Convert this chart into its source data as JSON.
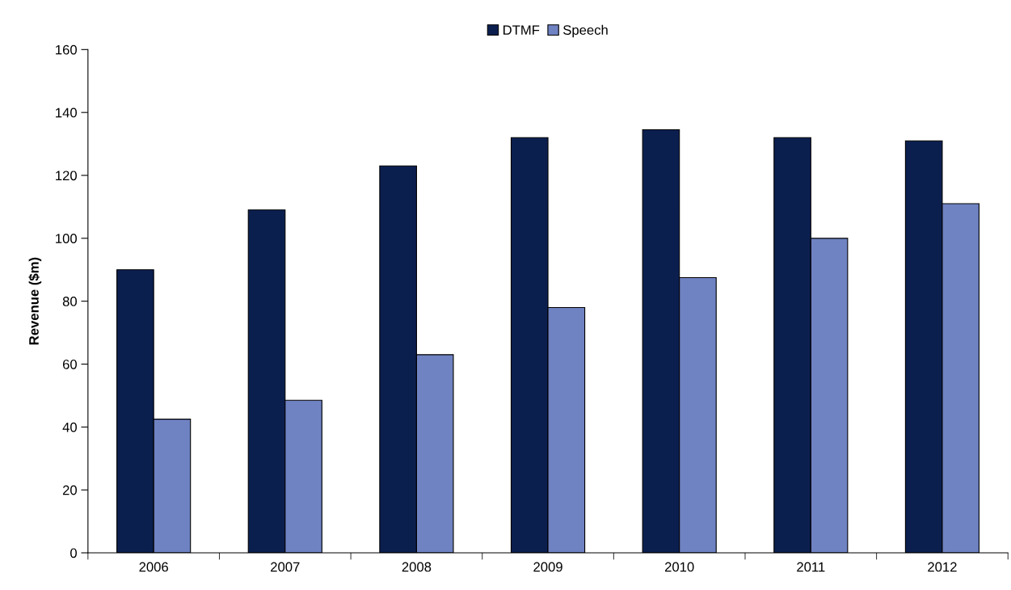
{
  "chart_data": {
    "type": "bar",
    "ylabel": "Revenue ($m)",
    "categories": [
      "2006",
      "2007",
      "2008",
      "2009",
      "2010",
      "2011",
      "2012"
    ],
    "series": [
      {
        "name": "DTMF",
        "color": "#0b1f4f",
        "values": [
          90,
          109,
          123,
          132,
          134.5,
          132,
          131
        ]
      },
      {
        "name": "Speech",
        "color": "#6f82c2",
        "values": [
          42.5,
          48.5,
          63,
          78,
          87.5,
          100,
          111
        ]
      }
    ],
    "ylim": [
      0,
      160
    ],
    "yticks": [
      0,
      20,
      40,
      60,
      80,
      100,
      120,
      140,
      160
    ],
    "grid": false,
    "legend": "top"
  }
}
